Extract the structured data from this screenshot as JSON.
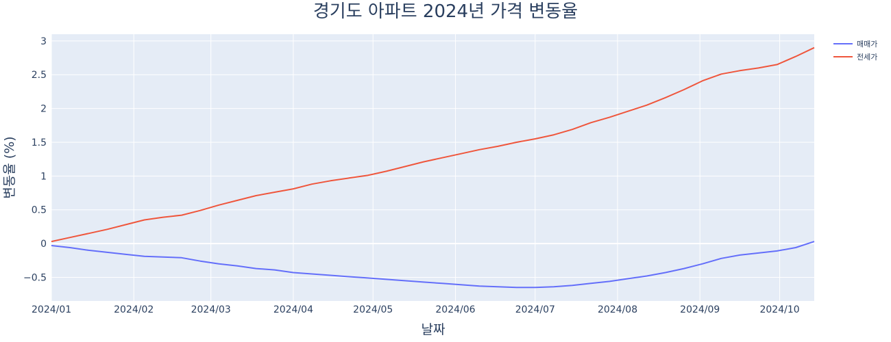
{
  "chart_data": {
    "type": "line",
    "title": "경기도 아파트 2024년 가격 변동율",
    "xlabel": "날짜",
    "ylabel": "변동율 (%)",
    "x_tick_labels": [
      "2024/01",
      "2024/02",
      "2024/03",
      "2024/04",
      "2024/05",
      "2024/06",
      "2024/07",
      "2024/08",
      "2024/09",
      "2024/10"
    ],
    "y_tick_labels": [
      "−0.5",
      "0",
      "0.5",
      "1",
      "1.5",
      "2",
      "2.5",
      "3"
    ],
    "xlim": [
      "2024-01-01",
      "2024-10-14"
    ],
    "ylim": [
      -0.85,
      3.1
    ],
    "grid": true,
    "legend_position": "top-right",
    "plot_background": "#e5ecf6",
    "x": [
      "2024-01-01",
      "2024-01-08",
      "2024-01-15",
      "2024-01-22",
      "2024-01-29",
      "2024-02-05",
      "2024-02-12",
      "2024-02-19",
      "2024-02-26",
      "2024-03-04",
      "2024-03-11",
      "2024-03-18",
      "2024-03-25",
      "2024-04-01",
      "2024-04-08",
      "2024-04-15",
      "2024-04-22",
      "2024-04-29",
      "2024-05-06",
      "2024-05-13",
      "2024-05-20",
      "2024-05-27",
      "2024-06-03",
      "2024-06-10",
      "2024-06-17",
      "2024-06-24",
      "2024-07-01",
      "2024-07-08",
      "2024-07-15",
      "2024-07-22",
      "2024-07-29",
      "2024-08-05",
      "2024-08-12",
      "2024-08-19",
      "2024-08-26",
      "2024-09-02",
      "2024-09-09",
      "2024-09-16",
      "2024-09-23",
      "2024-09-30",
      "2024-10-07",
      "2024-10-14"
    ],
    "series": [
      {
        "name": "매매가",
        "color": "#636efa",
        "values": [
          -0.03,
          -0.06,
          -0.1,
          -0.13,
          -0.16,
          -0.19,
          -0.2,
          -0.21,
          -0.26,
          -0.3,
          -0.33,
          -0.37,
          -0.39,
          -0.43,
          -0.45,
          -0.47,
          -0.49,
          -0.51,
          -0.53,
          -0.55,
          -0.57,
          -0.59,
          -0.61,
          -0.63,
          -0.64,
          -0.65,
          -0.65,
          -0.64,
          -0.62,
          -0.59,
          -0.56,
          -0.52,
          -0.48,
          -0.43,
          -0.37,
          -0.3,
          -0.22,
          -0.17,
          -0.14,
          -0.11,
          -0.06,
          0.03
        ]
      },
      {
        "name": "전세가",
        "color": "#ef553b",
        "values": [
          0.03,
          0.09,
          0.15,
          0.21,
          0.28,
          0.35,
          0.39,
          0.42,
          0.49,
          0.57,
          0.64,
          0.71,
          0.76,
          0.81,
          0.88,
          0.93,
          0.97,
          1.01,
          1.07,
          1.14,
          1.21,
          1.27,
          1.33,
          1.39,
          1.44,
          1.5,
          1.55,
          1.61,
          1.69,
          1.79,
          1.87,
          1.96,
          2.05,
          2.16,
          2.28,
          2.41,
          2.51,
          2.56,
          2.6,
          2.65,
          2.77,
          2.9
        ]
      }
    ]
  }
}
